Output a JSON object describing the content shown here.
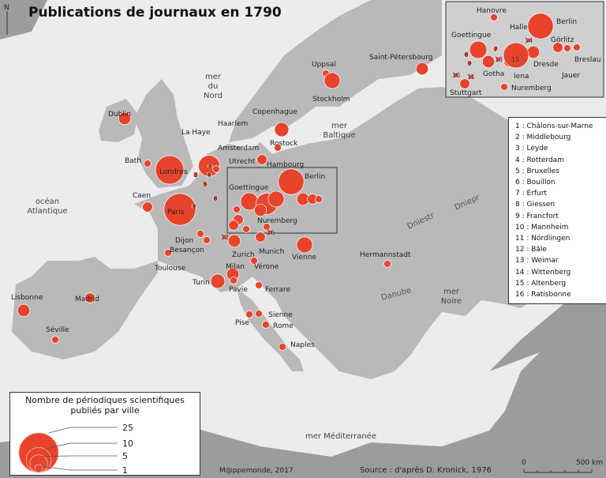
{
  "title": "Publications de journaux en 1790",
  "north_label": "N",
  "colors": {
    "circle": "#e8432c",
    "sea": "#ececec",
    "land": "#b9b9b9",
    "outer_land": "#9c9c9c"
  },
  "seas": [
    {
      "text": "mer Nord",
      "lines": [
        "mer",
        "du",
        "Nord"
      ]
    },
    {
      "text": "mer Baltique",
      "lines": [
        "mer",
        "Baltique"
      ]
    },
    {
      "text": "océan Atlantique",
      "lines": [
        "océan",
        "Atlantique"
      ]
    },
    {
      "text": "mer Noire",
      "lines": [
        "mer",
        "Noire"
      ]
    },
    {
      "text": "mer Méditerranée",
      "lines": [
        "mer Méditerranée"
      ]
    }
  ],
  "rivers": [
    "Dniepr",
    "Dniestr",
    "Danube"
  ],
  "cities": [
    {
      "name": "Dublin",
      "count": 3
    },
    {
      "name": "Bath",
      "count": 1
    },
    {
      "name": "Londres",
      "count": 16
    },
    {
      "name": "Caen",
      "count": 2
    },
    {
      "name": "Paris",
      "count": 20
    },
    {
      "name": "La Haye",
      "count": 1
    },
    {
      "name": "Haarlem",
      "count": 2
    },
    {
      "name": "Amsterdam",
      "count": 9
    },
    {
      "name": "Utrecht",
      "count": 1
    },
    {
      "name": "Hambourg",
      "count": 2
    },
    {
      "name": "Rostock",
      "count": 1
    },
    {
      "name": "Copenhague",
      "count": 4
    },
    {
      "name": "Uppsal",
      "count": 1
    },
    {
      "name": "Stockholm",
      "count": 5
    },
    {
      "name": "Saint-Pétersbourg",
      "count": 3
    },
    {
      "name": "Goettingue",
      "count": 6
    },
    {
      "name": "Berlin",
      "count": 13
    },
    {
      "name": "Nuremberg",
      "count": 1
    },
    {
      "name": "Dijon",
      "count": 1
    },
    {
      "name": "Besançon",
      "count": 1
    },
    {
      "name": "Zurich",
      "count": 3
    },
    {
      "name": "Munich",
      "count": 2
    },
    {
      "name": "Vienne",
      "count": 5
    },
    {
      "name": "Hermannstadt",
      "count": 1
    },
    {
      "name": "Toulouse",
      "count": 1
    },
    {
      "name": "Milan",
      "count": 3
    },
    {
      "name": "Turin",
      "count": 4
    },
    {
      "name": "Pavie",
      "count": 1
    },
    {
      "name": "Vérone",
      "count": 1
    },
    {
      "name": "Ferrare",
      "count": 1
    },
    {
      "name": "Lisbonne",
      "count": 3
    },
    {
      "name": "Madrid",
      "count": 2
    },
    {
      "name": "Séville",
      "count": 1
    },
    {
      "name": "Pise",
      "count": 1
    },
    {
      "name": "Sienne",
      "count": 1
    },
    {
      "name": "Rome",
      "count": 1
    },
    {
      "name": "Naples",
      "count": 1
    }
  ],
  "inset_cities": [
    {
      "name": "Hanovre",
      "count": 1
    },
    {
      "name": "Berlin",
      "count": 13
    },
    {
      "name": "Goettingue",
      "count": 6
    },
    {
      "name": "Halle",
      "count": 2
    },
    {
      "name": "Dresde",
      "count": 3
    },
    {
      "name": "Görlitz",
      "count": 2
    },
    {
      "name": "Jauer",
      "count": 1
    },
    {
      "name": "Breslau",
      "count": 1
    },
    {
      "name": "Gotha",
      "count": 3
    },
    {
      "name": "Iena",
      "count": 2
    },
    {
      "name": "Stuttgart",
      "count": 2
    },
    {
      "name": "Nuremberg",
      "count": 1
    }
  ],
  "numbered_cities": [
    "1 : Châlons-sur-Marne",
    "2 : Middlebourg",
    "3 : Leyde",
    "4 : Rotterdam",
    "5 : Bruxelles",
    "6 : Bouillon",
    "7 : Erfurt",
    "8 : Giessen",
    "9 : Francfort",
    "10 : Mannheim",
    "11 : Nördlingen",
    "12 : Bâle",
    "13 : Weimar",
    "14 : Wittenberg",
    "15 : Altenberg",
    "16 : Ratisbonne"
  ],
  "legend": {
    "title": "Nombre de périodiques scientifiques publiés par ville",
    "values": [
      25,
      10,
      5,
      1
    ]
  },
  "credit": "M@ppemonde, 2017",
  "source": "Source : d'après D. Kronick, 1976",
  "scale": {
    "start": "0",
    "end": "500 km"
  }
}
